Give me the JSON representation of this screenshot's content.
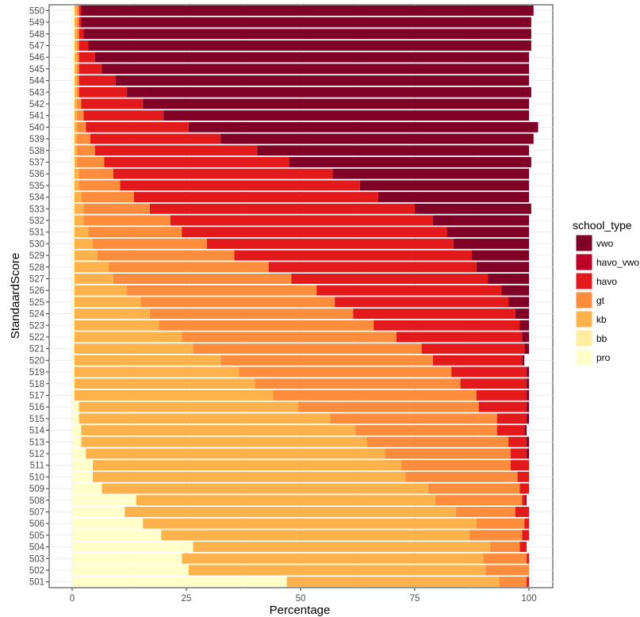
{
  "chart_data": {
    "type": "bar",
    "orientation": "horizontal",
    "stacked": true,
    "xlabel": "Percentage",
    "ylabel": "StandaardScore",
    "xlim": [
      0,
      100
    ],
    "xticks": [
      "0",
      "25",
      "50",
      "75",
      "100"
    ],
    "grid": true,
    "legend": {
      "title": "school_type",
      "position": "right",
      "entries": [
        "vwo",
        "havo_vwo",
        "havo",
        "gt",
        "kb",
        "bb",
        "pro"
      ]
    },
    "colors": {
      "pro": "#ffffcc",
      "bb": "#ffeda0",
      "kb": "#feb24c",
      "gt": "#fd8d3c",
      "havo": "#e31a1c",
      "havo_vwo": "#bd0026",
      "vwo": "#800026"
    },
    "stack_order": [
      "pro",
      "bb",
      "kb",
      "gt",
      "havo",
      "havo_vwo",
      "vwo"
    ],
    "categories": [
      "501",
      "502",
      "503",
      "504",
      "505",
      "506",
      "507",
      "508",
      "509",
      "510",
      "511",
      "512",
      "513",
      "514",
      "515",
      "516",
      "517",
      "518",
      "519",
      "520",
      "521",
      "522",
      "523",
      "524",
      "525",
      "526",
      "527",
      "528",
      "529",
      "530",
      "531",
      "532",
      "533",
      "534",
      "535",
      "536",
      "537",
      "538",
      "539",
      "540",
      "541",
      "542",
      "543",
      "544",
      "545",
      "546",
      "547",
      "548",
      "549",
      "550"
    ],
    "series": [
      {
        "name": "pro",
        "values": [
          47,
          25.5,
          24,
          26.5,
          19.5,
          15.5,
          11.5,
          14,
          6.5,
          4.5,
          4.5,
          3,
          2,
          2,
          1.5,
          1.5,
          0.5,
          0.5,
          0.5,
          0.5,
          0.5,
          0.5,
          0.5,
          0.5,
          0.5,
          0.5,
          0.5,
          0.5,
          0.5,
          0.5,
          0.5,
          0.5,
          0.5,
          0.5,
          0.5,
          0.5,
          0.5,
          0.5,
          0.5,
          0.5,
          0.5,
          0.5,
          0.5,
          0.5,
          0.5,
          0.5,
          0.5,
          0.5,
          0.5,
          0.5
        ]
      },
      {
        "name": "bb",
        "values": [
          0,
          0,
          0,
          0,
          0,
          0,
          0,
          0,
          0,
          0,
          0,
          0,
          0,
          0,
          0,
          0,
          0,
          0,
          0,
          0,
          0,
          0,
          0,
          0,
          0,
          0,
          0,
          0,
          0,
          0,
          0,
          0,
          0,
          0,
          0,
          0,
          0,
          0,
          0,
          0,
          0,
          0,
          0,
          0,
          0,
          0,
          0,
          0,
          0,
          0
        ]
      },
      {
        "name": "kb",
        "values": [
          46.5,
          65,
          66,
          65,
          67.5,
          73,
          72.5,
          65.5,
          71.5,
          68.5,
          67.5,
          65.5,
          62.5,
          60,
          55,
          48,
          43.5,
          39.5,
          36,
          32,
          26,
          23.5,
          18.5,
          16.5,
          14.5,
          11.5,
          8.5,
          7.5,
          5,
          4,
          3,
          2,
          2,
          1.5,
          1,
          1,
          0.5,
          0.5,
          0.5,
          0.5,
          0.5,
          0.5,
          0.5,
          0.5,
          0.5,
          0.5,
          0.5,
          0.5,
          0.5,
          0.5
        ]
      },
      {
        "name": "gt",
        "values": [
          6,
          9.5,
          9.5,
          6.5,
          11.5,
          10.5,
          13,
          19,
          20,
          24.5,
          24,
          27.5,
          31,
          31,
          36.5,
          39.5,
          44.5,
          45,
          46.5,
          46.5,
          50,
          47,
          47,
          44.5,
          42.5,
          41.5,
          39,
          35,
          30,
          25,
          20.5,
          19,
          14.5,
          11.5,
          9,
          7.5,
          6,
          4,
          3,
          2,
          1.5,
          1,
          0.5,
          0.5,
          0.5,
          0.5,
          0.5,
          0.5,
          0.5,
          0.5
        ]
      },
      {
        "name": "havo",
        "values": [
          0.5,
          0,
          0.5,
          1.5,
          1.5,
          1,
          3,
          0.5,
          2,
          2.5,
          4,
          3.5,
          4,
          6,
          6.5,
          10.5,
          11,
          14.5,
          16.5,
          19.5,
          22.5,
          27.5,
          32,
          35.5,
          38,
          40.5,
          43,
          45.5,
          52,
          54,
          58,
          57.5,
          58,
          53.5,
          52.5,
          48,
          40.5,
          35.5,
          28.5,
          22.5,
          17.5,
          13.5,
          10.5,
          8,
          5,
          3.5,
          2,
          1,
          0.5,
          0.5
        ]
      },
      {
        "name": "havo_vwo",
        "values": [
          0,
          0,
          0,
          0,
          0,
          0,
          0,
          0.5,
          0,
          0,
          0,
          0,
          0,
          0,
          0,
          0,
          0,
          0,
          0,
          0,
          0,
          0,
          0,
          0,
          0,
          0,
          0,
          0,
          0,
          0,
          0,
          0,
          0,
          0,
          0,
          0,
          0,
          0,
          0,
          0,
          0,
          0,
          0,
          0,
          0,
          0,
          0,
          0,
          0,
          0
        ]
      },
      {
        "name": "vwo",
        "values": [
          0,
          0,
          0,
          0,
          0,
          0,
          0,
          0,
          0,
          0,
          0,
          0.5,
          0.5,
          0.5,
          0.5,
          0.5,
          0.5,
          0.5,
          0.5,
          0.5,
          1,
          1.5,
          2,
          3,
          4.5,
          6,
          9,
          11.5,
          12.5,
          16.5,
          18,
          21,
          25.5,
          33,
          37,
          43,
          53,
          59.5,
          68.5,
          76.5,
          80,
          84.5,
          88.5,
          90.5,
          93.5,
          95,
          97,
          98,
          98.5,
          99
        ]
      }
    ]
  }
}
